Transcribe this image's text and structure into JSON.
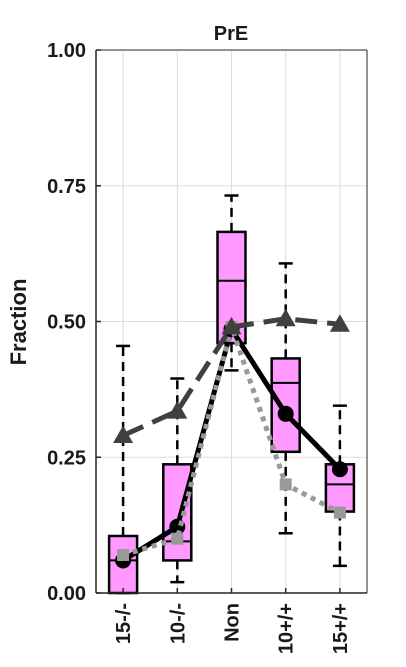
{
  "chart_data": {
    "type": "box",
    "title": "PrE",
    "xlabel": "",
    "ylabel": "Fraction",
    "ylim": [
      0,
      1
    ],
    "yticks": [
      "0.00",
      "0.25",
      "0.50",
      "0.75",
      "1.00"
    ],
    "categories": [
      "15-/-",
      "10-/-",
      "Non",
      "10+/+",
      "15+/+"
    ],
    "grid": true,
    "boxes": [
      {
        "category": "15-/-",
        "whisker_low": 0.0,
        "q1": 0.0,
        "median": 0.06,
        "q3": 0.105,
        "whisker_high": 0.455
      },
      {
        "category": "10-/-",
        "whisker_low": 0.02,
        "q1": 0.06,
        "median": 0.095,
        "q3": 0.237,
        "whisker_high": 0.395
      },
      {
        "category": "Non",
        "whisker_low": 0.41,
        "q1": 0.46,
        "median": 0.575,
        "q3": 0.665,
        "whisker_high": 0.732
      },
      {
        "category": "10+/+",
        "whisker_low": 0.11,
        "q1": 0.26,
        "median": 0.387,
        "q3": 0.432,
        "whisker_high": 0.607
      },
      {
        "category": "15+/+",
        "whisker_low": 0.05,
        "q1": 0.15,
        "median": 0.2,
        "q3": 0.237,
        "whisker_high": 0.345
      }
    ],
    "series": [
      {
        "style": "solid",
        "color": "#000000",
        "marker": "circle",
        "values": [
          0.06,
          0.122,
          0.486,
          0.33,
          0.228
        ]
      },
      {
        "style": "dotted",
        "color": "#999999",
        "marker": "square",
        "values": [
          0.07,
          0.1,
          0.49,
          0.2,
          0.148
        ]
      },
      {
        "style": "dashed",
        "color": "#404040",
        "marker": "triangle",
        "values": [
          0.29,
          0.335,
          0.49,
          0.505,
          0.495
        ]
      }
    ],
    "colors": {
      "box_fill": "#ff99ff",
      "box_edge": "#000000",
      "grid": "#dddddd"
    }
  }
}
